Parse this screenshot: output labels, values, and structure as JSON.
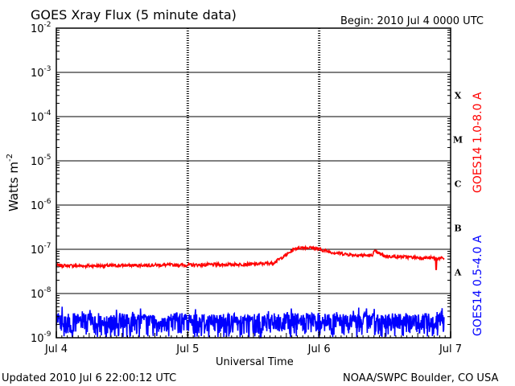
{
  "header": {
    "title": "GOES Xray Flux (5 minute data)",
    "begin": "Begin:  2010 Jul 4 0000 UTC"
  },
  "footer": {
    "updated": "Updated 2010 Jul  6 22:00:12 UTC",
    "source": "NOAA/SWPC Boulder, CO USA"
  },
  "chart_data": {
    "type": "line",
    "title": "GOES Xray Flux (5 minute data)",
    "xlabel": "Universal Time",
    "ylabel": "Watts m",
    "ylabel_superscript": "-2",
    "y_scale": "log",
    "ylim": [
      1e-09,
      0.01
    ],
    "y_ticks": [
      {
        "base": "10",
        "exp": "-2"
      },
      {
        "base": "10",
        "exp": "-3"
      },
      {
        "base": "10",
        "exp": "-4"
      },
      {
        "base": "10",
        "exp": "-5"
      },
      {
        "base": "10",
        "exp": "-6"
      },
      {
        "base": "10",
        "exp": "-7"
      },
      {
        "base": "10",
        "exp": "-8"
      },
      {
        "base": "10",
        "exp": "-9"
      }
    ],
    "x_ticks": [
      "Jul 4",
      "Jul 5",
      "Jul 6",
      "Jul 7"
    ],
    "flare_classes": [
      "X",
      "M",
      "C",
      "B",
      "A"
    ],
    "grid": true,
    "series": [
      {
        "name": "GOES14 1.0-8.0 A",
        "color": "#ff0000",
        "x_days": [
          0,
          0.25,
          0.5,
          0.75,
          1.0,
          1.25,
          1.5,
          1.65,
          1.75,
          1.82,
          1.88,
          1.95,
          2.0,
          2.1,
          2.25,
          2.4,
          2.42,
          2.5,
          2.6,
          2.7,
          2.8,
          2.9,
          2.92,
          2.95
        ],
        "values": [
          4.3e-08,
          4.2e-08,
          4.3e-08,
          4.4e-08,
          4.4e-08,
          4.5e-08,
          4.6e-08,
          4.9e-08,
          7.5e-08,
          1.05e-07,
          1.1e-07,
          1.08e-07,
          1e-07,
          8.5e-08,
          7.5e-08,
          7.2e-08,
          9e-08,
          7e-08,
          6.8e-08,
          6.6e-08,
          6.4e-08,
          6.3e-08,
          6.2e-08,
          6.3e-08
        ]
      },
      {
        "name": "GOES14 0.5-4.0 A",
        "color": "#0000ff",
        "baseline": "noisy, approximately 1e-9 to 3e-9"
      }
    ]
  }
}
